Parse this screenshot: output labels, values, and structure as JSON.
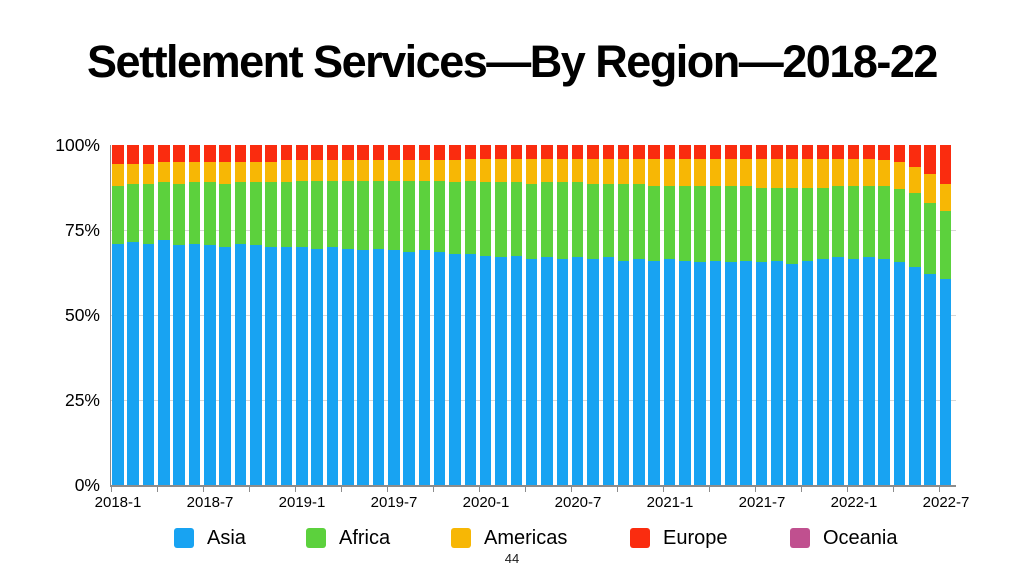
{
  "page": {
    "number": "44"
  },
  "chart_data": {
    "type": "bar",
    "stacked": true,
    "percent_stacked": true,
    "title": "Settlement Services—By Region—2018-22",
    "legend_position": "bottom",
    "grid": "horizontal at 25/50/75, light gray",
    "ylim": [
      0,
      100
    ],
    "y_ticks": [
      "0%",
      "25%",
      "50%",
      "75%",
      "100%"
    ],
    "y_tick_values": [
      0,
      25,
      50,
      75,
      100
    ],
    "x_tick_labels": [
      "2018-1",
      "2018-7",
      "2019-1",
      "2019-7",
      "2020-1",
      "2020-7",
      "2021-1",
      "2021-7",
      "2022-1",
      "2022-7"
    ],
    "x_tick_every": 6,
    "categories": [
      "2018-1",
      "2018-2",
      "2018-3",
      "2018-4",
      "2018-5",
      "2018-6",
      "2018-7",
      "2018-8",
      "2018-9",
      "2018-10",
      "2018-11",
      "2018-12",
      "2019-1",
      "2019-2",
      "2019-3",
      "2019-4",
      "2019-5",
      "2019-6",
      "2019-7",
      "2019-8",
      "2019-9",
      "2019-10",
      "2019-11",
      "2019-12",
      "2020-1",
      "2020-2",
      "2020-3",
      "2020-4",
      "2020-5",
      "2020-6",
      "2020-7",
      "2020-8",
      "2020-9",
      "2020-10",
      "2020-11",
      "2020-12",
      "2021-1",
      "2021-2",
      "2021-3",
      "2021-4",
      "2021-5",
      "2021-6",
      "2021-7",
      "2021-8",
      "2021-9",
      "2021-10",
      "2021-11",
      "2021-12",
      "2022-1",
      "2022-2",
      "2022-3",
      "2022-4",
      "2022-5",
      "2022-6",
      "2022-7"
    ],
    "series": [
      {
        "name": "Asia",
        "color": "#18A3F2",
        "values": [
          71,
          71.5,
          71,
          72,
          70.5,
          71,
          70.5,
          70,
          71,
          70.5,
          70,
          70,
          70,
          69.5,
          70,
          69.5,
          69,
          69.5,
          69,
          68.5,
          69,
          68.5,
          68,
          68,
          67.5,
          67,
          67.5,
          66.5,
          67,
          66.5,
          67,
          66.5,
          67,
          66,
          66.5,
          66,
          66.5,
          66,
          65.5,
          66,
          65.5,
          66,
          65.5,
          66,
          65,
          66,
          66.5,
          67,
          66.5,
          67,
          66.5,
          65.5,
          64,
          62,
          60.5
        ]
      },
      {
        "name": "Africa",
        "color": "#5CD13D",
        "values": [
          17,
          17,
          17.5,
          17,
          18,
          18,
          18.5,
          18.5,
          18,
          18.5,
          19,
          19,
          19.5,
          20,
          19.5,
          20,
          20.5,
          20,
          20.5,
          21,
          20.5,
          21,
          21,
          21.5,
          21.5,
          22,
          21.5,
          22,
          22,
          22.5,
          22,
          22,
          21.5,
          22.5,
          22,
          22,
          21.5,
          22,
          22.5,
          22,
          22.5,
          22,
          22,
          21.5,
          22.5,
          21.5,
          21,
          21,
          21.5,
          21,
          21.5,
          21.5,
          22,
          21,
          20
        ]
      },
      {
        "name": "Americas",
        "color": "#F7B705",
        "values": [
          6.5,
          6,
          6,
          6,
          6.5,
          6,
          6,
          6.5,
          6,
          6,
          6,
          6.5,
          6,
          6,
          6,
          6,
          6,
          6,
          6,
          6,
          6,
          6,
          6.5,
          6.5,
          7,
          7,
          7,
          7.5,
          7,
          7,
          7,
          7.5,
          7.5,
          7.5,
          7.5,
          8,
          8,
          8,
          8,
          8,
          8,
          8,
          8.5,
          8.5,
          8.5,
          8.5,
          8.5,
          8,
          8,
          8,
          7.5,
          8,
          7.5,
          8.5,
          8
        ]
      },
      {
        "name": "Europe",
        "color": "#FA2C0F",
        "values": [
          5.5,
          5.5,
          5.5,
          5,
          5,
          5,
          5,
          5,
          5,
          5,
          5,
          4.5,
          4.5,
          4.5,
          4.5,
          4.5,
          4.5,
          4.5,
          4.5,
          4.5,
          4.5,
          4.5,
          4.5,
          4,
          4,
          4,
          4,
          4,
          4,
          4,
          4,
          4,
          4,
          4,
          4,
          4,
          4,
          4,
          4,
          4,
          4,
          4,
          4,
          4,
          4,
          4,
          4,
          4,
          4,
          4,
          4.5,
          5,
          6.5,
          8.5,
          11.5
        ]
      },
      {
        "name": "Oceania",
        "color": "#C0508F",
        "values": [
          0,
          0,
          0,
          0,
          0,
          0,
          0,
          0,
          0,
          0,
          0,
          0,
          0,
          0,
          0,
          0,
          0,
          0,
          0,
          0,
          0,
          0,
          0,
          0,
          0,
          0,
          0,
          0,
          0,
          0,
          0,
          0,
          0,
          0,
          0,
          0,
          0,
          0,
          0,
          0,
          0,
          0,
          0,
          0,
          0,
          0,
          0,
          0,
          0,
          0,
          0,
          0,
          0,
          0,
          0
        ]
      }
    ]
  }
}
